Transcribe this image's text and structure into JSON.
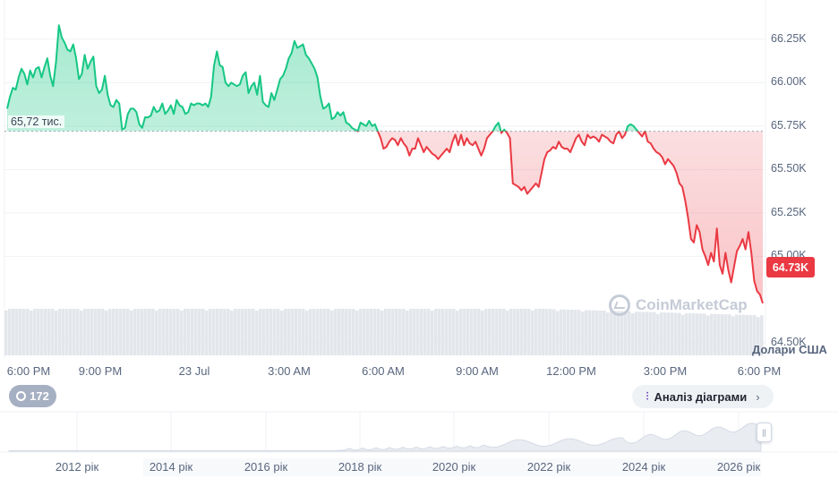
{
  "chart_data": {
    "type": "line",
    "unit_label": "Долари США",
    "y_ticks": [
      "66.25K",
      "66.00K",
      "65.75K",
      "65.50K",
      "65.25K",
      "65.00K",
      "64.50K"
    ],
    "y_tick_values": [
      66250,
      66000,
      65750,
      65500,
      65250,
      65000,
      64500
    ],
    "ylim": [
      64430,
      66450
    ],
    "x_ticks": [
      "6:00 PM",
      "9:00 PM",
      "23 Jul",
      "3:00 AM",
      "6:00 AM",
      "9:00 AM",
      "12:00 PM",
      "3:00 PM",
      "6:00 PM"
    ],
    "reference_value": 65720,
    "reference_label": "65,72 тис.",
    "current_value_label": "64.73K",
    "current_value": 64730,
    "colors": {
      "up": "#16c784",
      "down": "#ea3943",
      "up_fill": "#16c784",
      "down_fill": "#ea3943",
      "volume": "#e3e6eb"
    },
    "series": [
      {
        "values": [
          65850,
          65920,
          65970,
          65960,
          66030,
          66080,
          66050,
          65990,
          66070,
          66030,
          66080,
          66090,
          66030,
          66090,
          66140,
          66040,
          65980,
          66120,
          66330,
          66260,
          66230,
          66190,
          66180,
          66220,
          66140,
          66020,
          66050,
          66160,
          66080,
          66120,
          66150,
          65980,
          65940,
          65960,
          66040,
          65930,
          65870,
          65860,
          65900,
          65880,
          65730,
          65740,
          65820,
          65850,
          65850,
          65830,
          65760,
          65740,
          65800,
          65800,
          65810,
          65860,
          65830,
          65840,
          65880,
          65820,
          65840,
          65870,
          65820,
          65900,
          65870,
          65860,
          65820,
          65830,
          65880,
          65870,
          65880,
          65880,
          65870,
          65880,
          65860,
          65920,
          66100,
          66180,
          66100,
          66090,
          66000,
          65980,
          66000,
          65990,
          65980,
          65990,
          66040,
          66060,
          65940,
          65980,
          66000,
          65930,
          66040,
          65890,
          65870,
          65860,
          65940,
          65900,
          65960,
          66020,
          66040,
          66080,
          66140,
          66170,
          66240,
          66200,
          66210,
          66220,
          66160,
          66140,
          66110,
          66080,
          66030,
          65920,
          65850,
          65860,
          65880,
          65790,
          65800,
          65830,
          65810,
          65830,
          65770,
          65760,
          65740,
          65730,
          65720,
          65770,
          65760,
          65750,
          65780,
          65750,
          65760,
          65720,
          65680,
          65620,
          65630,
          65660,
          65680,
          65670,
          65640,
          65680,
          65650,
          65630,
          65580,
          65620,
          65620,
          65680,
          65640,
          65600,
          65630,
          65610,
          65590,
          65580,
          65560,
          65580,
          65600,
          65620,
          65600,
          65660,
          65700,
          65640,
          65700,
          65640,
          65680,
          65650,
          65640,
          65660,
          65620,
          65580,
          65620,
          65680,
          65700,
          65720,
          65750,
          65770,
          65710,
          65730,
          65710,
          65680,
          65420,
          65410,
          65400,
          65380,
          65400,
          65360,
          65380,
          65400,
          65420,
          65400,
          65480,
          65560,
          65600,
          65610,
          65630,
          65620,
          65660,
          65630,
          65620,
          65620,
          65600,
          65640,
          65680,
          65700,
          65660,
          65640,
          65700,
          65680,
          65690,
          65680,
          65660,
          65700,
          65690,
          65680,
          65660,
          65650,
          65700,
          65720,
          65680,
          65700,
          65750,
          65760,
          65750,
          65730,
          65710,
          65690,
          65720,
          65660,
          65650,
          65620,
          65600,
          65590,
          65570,
          65530,
          65560,
          65540,
          65520,
          65480,
          65420,
          65400,
          65320,
          65220,
          65100,
          65080,
          65180,
          65140,
          65040,
          65000,
          64950,
          65020,
          64970,
          65160,
          64950,
          64900,
          65020,
          64920,
          64850,
          64940,
          65030,
          65060,
          65100,
          65040,
          65140,
          65020,
          64860,
          64800,
          64780,
          64730
        ]
      }
    ]
  },
  "watermark": "CoinMarketCap",
  "range_selector": {
    "ticks": [
      "2012 рік",
      "2014 рік",
      "2016 рік",
      "2018 рік",
      "2020 рік",
      "2022 рік",
      "2024 рік",
      "2026 рік"
    ],
    "handle_icon": "pause-bars-icon"
  },
  "history_button": {
    "label": "172",
    "icon": "history-clock-icon"
  },
  "analysis_button": {
    "label": "Аналіз діаграми",
    "icon": "candlestick-icon",
    "chevron": "›"
  }
}
